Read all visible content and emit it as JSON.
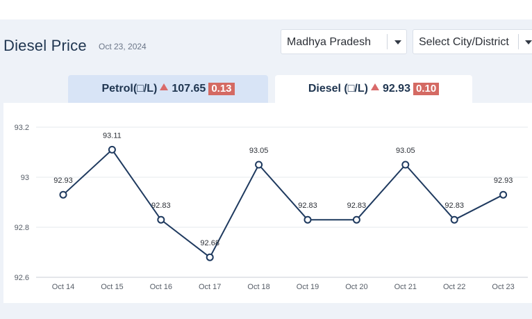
{
  "header": {
    "title": "Diesel Price",
    "date": "Oct 23, 2024"
  },
  "filters": {
    "state": "Madhya Pradesh",
    "city": "Select City/District"
  },
  "tabs": [
    {
      "fuel": "Petrol(□/L)",
      "price": "107.65",
      "change": "0.13",
      "trend_icon": "up-triangle-icon",
      "active": false
    },
    {
      "fuel": "Diesel (□/L)",
      "price": "92.93",
      "change": "0.10",
      "trend_icon": "up-triangle-icon",
      "active": true
    }
  ],
  "colors": {
    "line": "#1f3a5f",
    "change_badge": "#d46a63",
    "trend_up": "#d96a6a",
    "inactive_tab": "#d8e4f6"
  },
  "chart_data": {
    "type": "line",
    "categories": [
      "Oct 14",
      "Oct 15",
      "Oct 16",
      "Oct 17",
      "Oct 18",
      "Oct 19",
      "Oct 20",
      "Oct 21",
      "Oct 22",
      "Oct 23"
    ],
    "values": [
      92.93,
      93.11,
      92.83,
      92.68,
      93.05,
      92.83,
      92.83,
      93.05,
      92.83,
      92.93
    ],
    "data_labels": [
      "92.93",
      "93.11",
      "92.83",
      "92.68",
      "93.05",
      "92.83",
      "92.83",
      "93.05",
      "92.83",
      "92.93"
    ],
    "y_ticks": [
      "92.6",
      "92.8",
      "93",
      "93.2"
    ],
    "ylim": [
      92.6,
      93.2
    ],
    "grid": true,
    "title": "",
    "xlabel": "",
    "ylabel": ""
  }
}
